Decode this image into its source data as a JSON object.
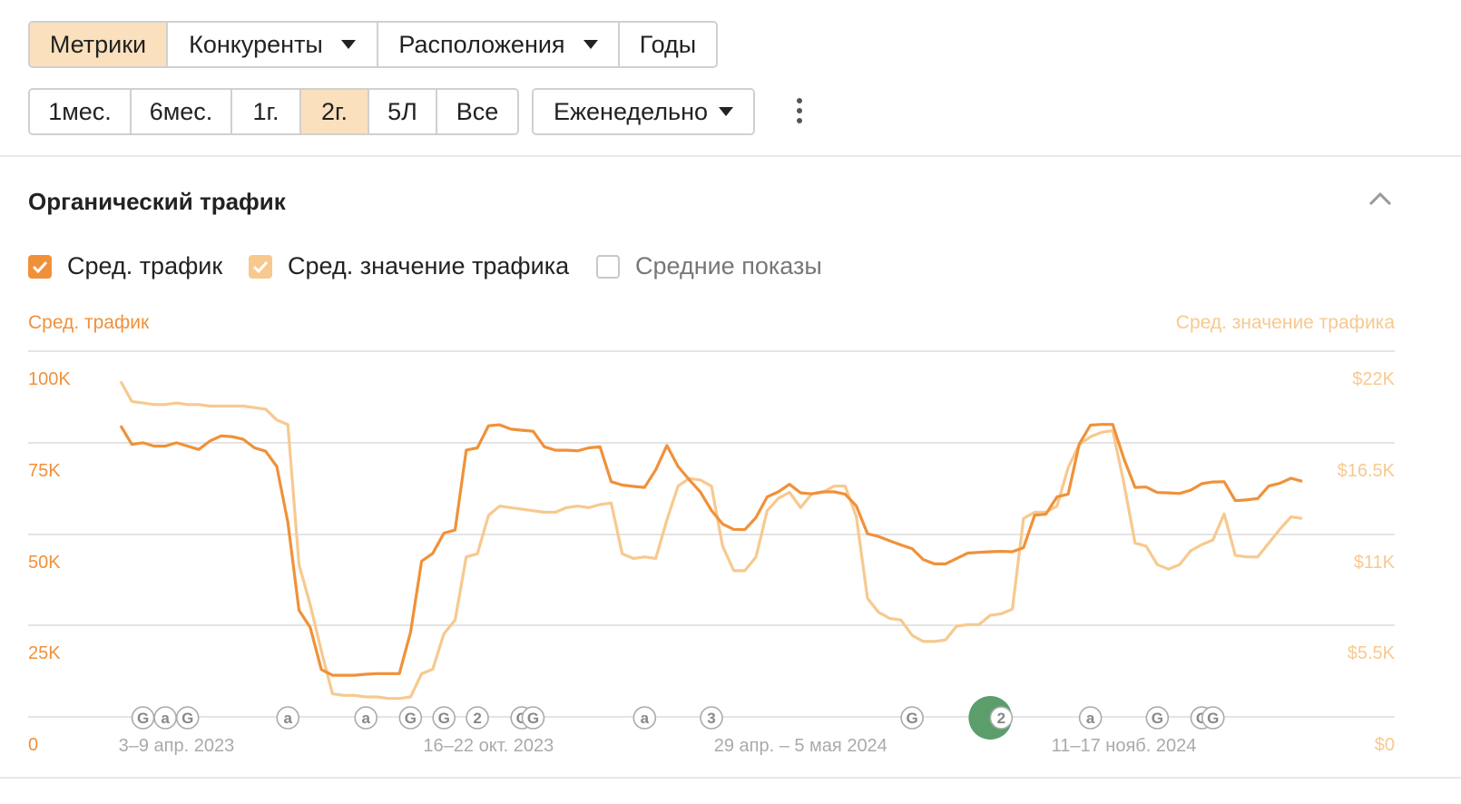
{
  "tabs": {
    "metrics": "Метрики",
    "competitors": "Конкуренты",
    "locations": "Расположения",
    "years": "Годы"
  },
  "periods": [
    "1мес.",
    "6мес.",
    "1г.",
    "2г.",
    "5Л",
    "Все"
  ],
  "active_period": "2г.",
  "frequency": "Еженедельно",
  "section_title": "Органический трафик",
  "checkboxes": [
    {
      "label": "Сред. трафик",
      "checked": true,
      "color": "#f0913a"
    },
    {
      "label": "Сред. значение трафика",
      "checked": true,
      "color": "#f7c98f"
    },
    {
      "label": "Средние показы",
      "checked": false,
      "color": "#c8c8c8"
    }
  ],
  "chart_data": {
    "type": "line",
    "y_left_label": "Сред. трафик",
    "y_right_label": "Сред. значение трафика",
    "y_left_ticks": [
      "0",
      "25K",
      "50K",
      "75K",
      "100K"
    ],
    "y_right_ticks": [
      "$0",
      "$5.5K",
      "$11K",
      "$16.5K",
      "$22K"
    ],
    "ylim_left": [
      0,
      100000
    ],
    "ylim_right": [
      0,
      22000
    ],
    "x_ticks": [
      {
        "label": "3–9 апр. 2023",
        "index": 5
      },
      {
        "label": "16–22 окт. 2023",
        "index": 33
      },
      {
        "label": "29 апр. – 5 мая 2024",
        "index": 61
      },
      {
        "label": "11–17 нояб. 2024",
        "index": 90
      }
    ],
    "series": [
      {
        "name": "Сред. трафик",
        "color": "#f0913a",
        "axis": "left",
        "values": [
          86000,
          80500,
          81000,
          80000,
          80000,
          81000,
          80000,
          79000,
          81500,
          83000,
          82800,
          82000,
          79500,
          78500,
          74000,
          57500,
          31500,
          26500,
          14000,
          12300,
          12300,
          12300,
          12600,
          12800,
          12800,
          12800,
          25000,
          46000,
          48300,
          54300,
          55200,
          78800,
          79500,
          86000,
          86300,
          85000,
          84700,
          84400,
          79800,
          78800,
          78800,
          78600,
          79500,
          79800,
          69500,
          68500,
          68100,
          67800,
          73000,
          80200,
          74000,
          70100,
          66500,
          61000,
          57000,
          55400,
          55300,
          58900,
          65000,
          66500,
          68700,
          66200,
          65900,
          66500,
          66500,
          65800,
          62300,
          54100,
          53300,
          52000,
          50800,
          49700,
          46500,
          45200,
          45200,
          46800,
          48400,
          48600,
          48800,
          48900,
          48800,
          50000,
          59600,
          59900,
          65000,
          65800,
          80600,
          86200,
          86400,
          86400,
          76300,
          67800,
          67900,
          66300,
          66200,
          66000,
          67000,
          68900,
          69400,
          69500,
          63900,
          64100,
          64500,
          68200,
          69000,
          70500,
          69600
        ]
      },
      {
        "name": "Сред. значение трафика",
        "color": "#f7c98f",
        "axis": "right",
        "values": [
          21800,
          20500,
          20400,
          20300,
          20300,
          20400,
          20300,
          20300,
          20200,
          20200,
          20200,
          20200,
          20100,
          20000,
          19300,
          19000,
          9900,
          7300,
          4300,
          1500,
          1400,
          1400,
          1300,
          1300,
          1200,
          1200,
          1300,
          2800,
          3100,
          5400,
          6300,
          10400,
          10600,
          13100,
          13700,
          13600,
          13500,
          13400,
          13300,
          13300,
          13600,
          13700,
          13600,
          13800,
          13900,
          10600,
          10300,
          10400,
          10300,
          12800,
          15000,
          15500,
          15400,
          15000,
          11100,
          9500,
          9500,
          10400,
          13400,
          14200,
          14600,
          13600,
          14500,
          14600,
          15000,
          15000,
          13000,
          7700,
          6800,
          6400,
          6300,
          5300,
          4900,
          4900,
          5000,
          5900,
          6000,
          6000,
          6600,
          6700,
          7000,
          12900,
          13300,
          13300,
          13700,
          16200,
          17700,
          18200,
          18500,
          18600,
          15200,
          11300,
          11100,
          9900,
          9600,
          9900,
          10800,
          11200,
          11500,
          13200,
          10500,
          10400,
          10400,
          11300,
          12200,
          13000,
          12900
        ]
      }
    ],
    "annotations": [
      "G",
      "a",
      "G",
      "a",
      "a",
      "G",
      "G",
      "2",
      "G",
      "G",
      "a",
      "3",
      "G",
      "2",
      "a",
      "G",
      "G",
      "G"
    ],
    "annotation_indices": [
      2,
      4,
      6,
      15,
      22,
      26,
      29,
      32,
      36,
      37,
      47,
      53,
      71,
      79,
      87,
      93,
      97,
      98
    ],
    "highlighted_annotation_index": 13,
    "grid": true
  }
}
